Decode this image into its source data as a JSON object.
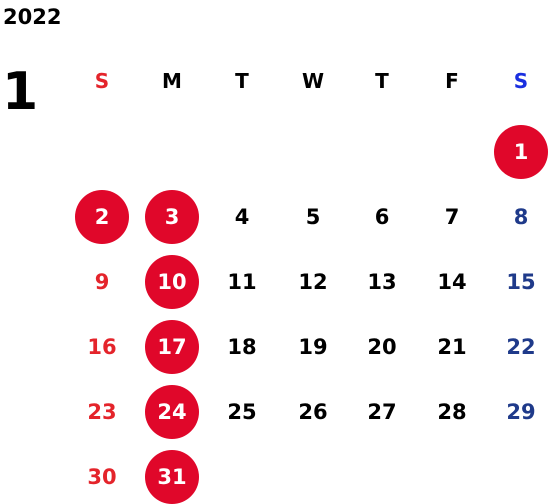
{
  "calendar": {
    "year": "2022",
    "month": "1",
    "weekdays": [
      "S",
      "M",
      "T",
      "W",
      "T",
      "F",
      "S"
    ],
    "weeks": [
      [
        "",
        "",
        "",
        "",
        "",
        "",
        "1"
      ],
      [
        "2",
        "3",
        "4",
        "5",
        "6",
        "7",
        "8"
      ],
      [
        "9",
        "10",
        "11",
        "12",
        "13",
        "14",
        "15"
      ],
      [
        "16",
        "17",
        "18",
        "19",
        "20",
        "21",
        "22"
      ],
      [
        "23",
        "24",
        "25",
        "26",
        "27",
        "28",
        "29"
      ],
      [
        "30",
        "31",
        "",
        "",
        "",
        "",
        ""
      ]
    ],
    "holidays": [
      "1",
      "2",
      "3",
      "10",
      "17",
      "24",
      "31"
    ]
  },
  "colors": {
    "sunday": "#e4242b",
    "saturday_header": "#1a2fe0",
    "saturday": "#1f3a8a",
    "weekday": "#000000",
    "holiday_circle": "#e0072a",
    "holiday_text": "#ffffff"
  }
}
